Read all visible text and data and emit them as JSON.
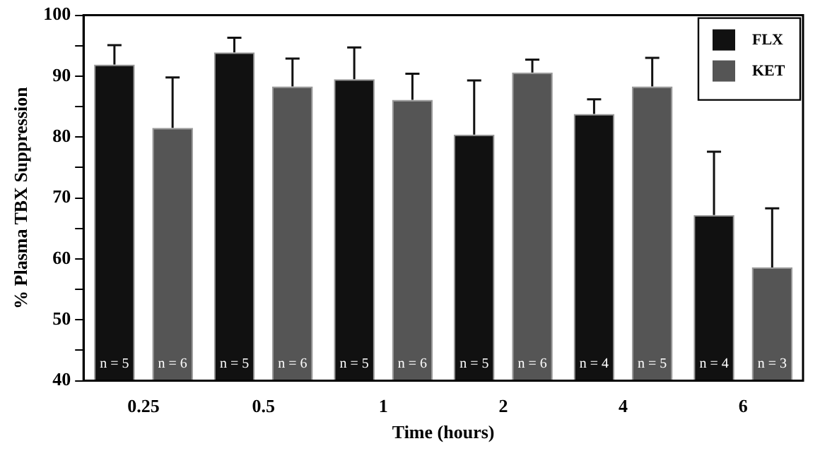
{
  "chart_data": {
    "type": "bar",
    "categories": [
      "0.25",
      "0.5",
      "1",
      "2",
      "4",
      "6"
    ],
    "series": [
      {
        "name": "FLX",
        "color": "#111111",
        "values": [
          91.9,
          93.9,
          89.5,
          80.4,
          83.8,
          67.2
        ],
        "errors": [
          [
            91.9,
            95.1
          ],
          [
            93.9,
            96.3
          ],
          [
            89.5,
            94.7
          ],
          [
            80.4,
            89.3
          ],
          [
            83.8,
            86.2
          ],
          [
            67.2,
            77.6
          ]
        ]
      },
      {
        "name": "KET",
        "color": "#555555",
        "values": [
          81.5,
          88.3,
          86.1,
          90.6,
          88.3,
          58.6
        ],
        "errors": [
          [
            81.5,
            89.8
          ],
          [
            88.3,
            92.9
          ],
          [
            86.1,
            90.4
          ],
          [
            90.6,
            92.7
          ],
          [
            88.3,
            93.0
          ],
          [
            58.6,
            68.3
          ]
        ]
      }
    ],
    "annotations": [
      "n = 5",
      "n = 6",
      "n = 5",
      "n = 6",
      "n = 5",
      "n = 6",
      "n = 5",
      "n = 6",
      "n = 4",
      "n = 5",
      "n = 4",
      "n = 3"
    ],
    "xlabel": "Time (hours)",
    "ylabel": "% Plasma TBX Suppression",
    "ylim": [
      40,
      100
    ],
    "yticks": [
      40,
      {
        "value": 45,
        "label": null
      },
      50,
      {
        "value": 55,
        "label": null
      },
      60,
      {
        "value": 65,
        "label": null
      },
      70,
      {
        "value": 75,
        "label": null
      },
      80,
      {
        "value": 85,
        "label": null
      },
      90,
      {
        "value": 95,
        "label": null
      },
      100
    ],
    "grid": false,
    "legend": "top right"
  }
}
